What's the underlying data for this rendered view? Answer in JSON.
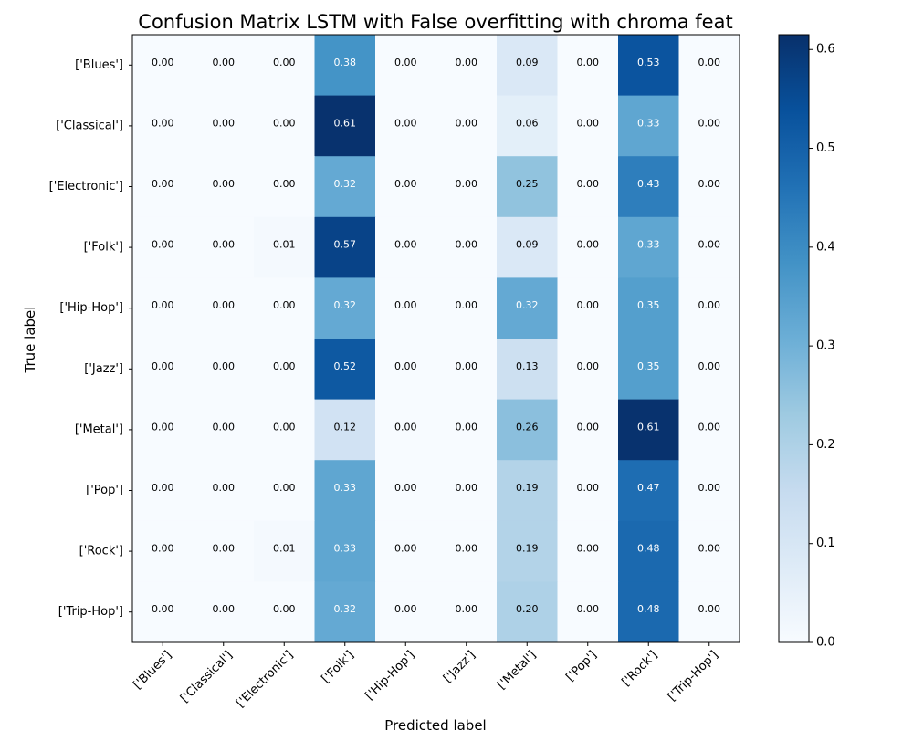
{
  "chart_data": {
    "type": "heatmap",
    "title": "Confusion Matrix LSTM with False overfitting with chroma feat",
    "xlabel": "Predicted label",
    "ylabel": "True label",
    "x_categories": [
      "['Blues']",
      "['Classical']",
      "['Electronic']",
      "['Folk']",
      "['Hip-Hop']",
      "['Jazz']",
      "['Metal']",
      "['Pop']",
      "['Rock']",
      "['Trip-Hop']"
    ],
    "y_categories": [
      "['Blues']",
      "['Classical']",
      "['Electronic']",
      "['Folk']",
      "['Hip-Hop']",
      "['Jazz']",
      "['Metal']",
      "['Pop']",
      "['Rock']",
      "['Trip-Hop']"
    ],
    "values": [
      [
        0.0,
        0.0,
        0.0,
        0.38,
        0.0,
        0.0,
        0.09,
        0.0,
        0.53,
        0.0
      ],
      [
        0.0,
        0.0,
        0.0,
        0.61,
        0.0,
        0.0,
        0.06,
        0.0,
        0.33,
        0.0
      ],
      [
        0.0,
        0.0,
        0.0,
        0.32,
        0.0,
        0.0,
        0.25,
        0.0,
        0.43,
        0.0
      ],
      [
        0.0,
        0.0,
        0.01,
        0.57,
        0.0,
        0.0,
        0.09,
        0.0,
        0.33,
        0.0
      ],
      [
        0.0,
        0.0,
        0.0,
        0.32,
        0.0,
        0.0,
        0.32,
        0.0,
        0.35,
        0.0
      ],
      [
        0.0,
        0.0,
        0.0,
        0.52,
        0.0,
        0.0,
        0.13,
        0.0,
        0.35,
        0.0
      ],
      [
        0.0,
        0.0,
        0.0,
        0.12,
        0.0,
        0.0,
        0.26,
        0.0,
        0.61,
        0.0
      ],
      [
        0.0,
        0.0,
        0.0,
        0.33,
        0.0,
        0.0,
        0.19,
        0.0,
        0.47,
        0.0
      ],
      [
        0.0,
        0.0,
        0.01,
        0.33,
        0.0,
        0.0,
        0.19,
        0.0,
        0.48,
        0.0
      ],
      [
        0.0,
        0.0,
        0.0,
        0.32,
        0.0,
        0.0,
        0.2,
        0.0,
        0.48,
        0.0
      ]
    ],
    "colorbar": {
      "colormap": "Blues",
      "range": [
        0,
        0.615
      ],
      "ticks": [
        0.0,
        0.1,
        0.2,
        0.3,
        0.4,
        0.5,
        0.6
      ],
      "tick_labels": [
        "0.0",
        "0.1",
        "0.2",
        "0.3",
        "0.4",
        "0.5",
        "0.6"
      ]
    },
    "grid": false,
    "value_format": "2 decimals"
  }
}
